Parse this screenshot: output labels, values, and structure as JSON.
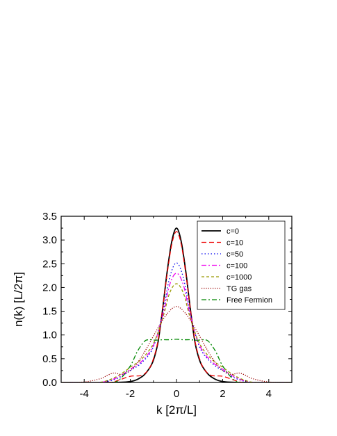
{
  "chart_data": {
    "type": "line",
    "title": "",
    "xlabel": "k [2π/L]",
    "ylabel": "n(k) [L/2π]",
    "xlim": [
      -5,
      5
    ],
    "ylim": [
      0,
      3.5
    ],
    "xticks": [
      -4,
      -2,
      0,
      2,
      4
    ],
    "yticks": [
      0.0,
      0.5,
      1.0,
      1.5,
      2.0,
      2.5,
      3.0,
      3.5
    ],
    "ytick_labels": [
      "0.0",
      "0.5",
      "1.0",
      "1.5",
      "2.0",
      "2.5",
      "3.0",
      "3.5"
    ],
    "xtick_labels": [
      "-4",
      "-2",
      "0",
      "2",
      "4"
    ],
    "grid": false,
    "legend_position": "top-right",
    "series": [
      {
        "name": "c=0",
        "color": "#000000",
        "dash": "solid",
        "x": [
          -5,
          -3,
          -2,
          -1.5,
          -1.2,
          -1,
          -0.8,
          -0.6,
          -0.4,
          -0.2,
          0,
          0.2,
          0.4,
          0.6,
          0.8,
          1,
          1.2,
          1.5,
          2,
          3,
          5
        ],
        "y": [
          0,
          0,
          0.02,
          0.12,
          0.28,
          0.47,
          0.85,
          1.55,
          2.35,
          2.98,
          3.25,
          2.98,
          2.35,
          1.55,
          0.85,
          0.47,
          0.28,
          0.12,
          0.02,
          0,
          0
        ]
      },
      {
        "name": "c=10",
        "color": "#ee0000",
        "dash": "dashed",
        "x": [
          -5,
          -3,
          -2.5,
          -2,
          -1.5,
          -1.2,
          -1,
          -0.8,
          -0.6,
          -0.4,
          -0.2,
          0,
          0.2,
          0.4,
          0.6,
          0.8,
          1,
          1.2,
          1.5,
          2,
          2.5,
          3,
          5
        ],
        "y": [
          0,
          0,
          0.05,
          0.13,
          0.15,
          0.28,
          0.5,
          0.88,
          1.55,
          2.3,
          2.92,
          3.18,
          2.92,
          2.3,
          1.55,
          0.88,
          0.5,
          0.28,
          0.15,
          0.13,
          0.05,
          0,
          0
        ]
      },
      {
        "name": "c=50",
        "color": "#0000ee",
        "dash": "dotted",
        "x": [
          -5,
          -3.5,
          -3,
          -2.5,
          -2,
          -1.5,
          -1,
          -0.6,
          -0.3,
          0,
          0.3,
          0.6,
          1,
          1.5,
          2,
          2.5,
          3,
          3.5,
          5
        ],
        "y": [
          0,
          0,
          0.02,
          0.1,
          0.25,
          0.42,
          0.75,
          1.45,
          2.2,
          2.52,
          2.2,
          1.45,
          0.75,
          0.42,
          0.25,
          0.1,
          0.02,
          0,
          0
        ]
      },
      {
        "name": "c=100",
        "color": "#ee00ee",
        "dash": "dashdot",
        "x": [
          -5,
          -3.5,
          -3,
          -2.5,
          -2,
          -1.5,
          -1,
          -0.6,
          -0.3,
          0,
          0.3,
          0.6,
          1,
          1.5,
          2,
          2.5,
          3,
          3.5,
          5
        ],
        "y": [
          0,
          0,
          0.03,
          0.12,
          0.28,
          0.45,
          0.78,
          1.4,
          2.05,
          2.3,
          2.05,
          1.4,
          0.78,
          0.45,
          0.28,
          0.12,
          0.03,
          0,
          0
        ]
      },
      {
        "name": "c=1000",
        "color": "#999900",
        "dash": "shortdash",
        "x": [
          -5,
          -3.5,
          -3,
          -2.5,
          -2,
          -1.5,
          -1,
          -0.6,
          -0.3,
          0,
          0.3,
          0.6,
          1,
          1.5,
          2,
          2.5,
          3,
          3.5,
          5
        ],
        "y": [
          0,
          0,
          0.04,
          0.15,
          0.32,
          0.5,
          0.82,
          1.35,
          1.88,
          2.08,
          1.88,
          1.35,
          0.82,
          0.5,
          0.32,
          0.15,
          0.04,
          0,
          0
        ]
      },
      {
        "name": "TG gas",
        "color": "#990000",
        "dash": "finedot",
        "x": [
          -5,
          -4,
          -3.3,
          -3,
          -2.7,
          -2.4,
          -2.1,
          -1.8,
          -1.5,
          -1.2,
          -0.8,
          -0.4,
          0,
          0.4,
          0.8,
          1.2,
          1.5,
          1.8,
          2.1,
          2.4,
          2.7,
          3,
          3.3,
          4,
          5
        ],
        "y": [
          0,
          0.01,
          0.08,
          0.15,
          0.2,
          0.17,
          0.22,
          0.35,
          0.55,
          0.8,
          1.15,
          1.45,
          1.6,
          1.45,
          1.15,
          0.8,
          0.55,
          0.35,
          0.22,
          0.17,
          0.2,
          0.15,
          0.08,
          0.01,
          0
        ]
      },
      {
        "name": "Free Fermion",
        "color": "#008800",
        "dash": "dashdot",
        "x": [
          -5,
          -3,
          -2.5,
          -2,
          -1.7,
          -1.4,
          -1.2,
          -0.9,
          -0.6,
          -0.3,
          0,
          0.3,
          0.6,
          0.9,
          1.2,
          1.4,
          1.7,
          2,
          2.5,
          3,
          5
        ],
        "y": [
          0,
          0,
          0.05,
          0.35,
          0.65,
          0.86,
          0.9,
          0.89,
          0.9,
          0.9,
          0.91,
          0.9,
          0.9,
          0.89,
          0.9,
          0.86,
          0.65,
          0.35,
          0.05,
          0,
          0
        ]
      }
    ]
  }
}
